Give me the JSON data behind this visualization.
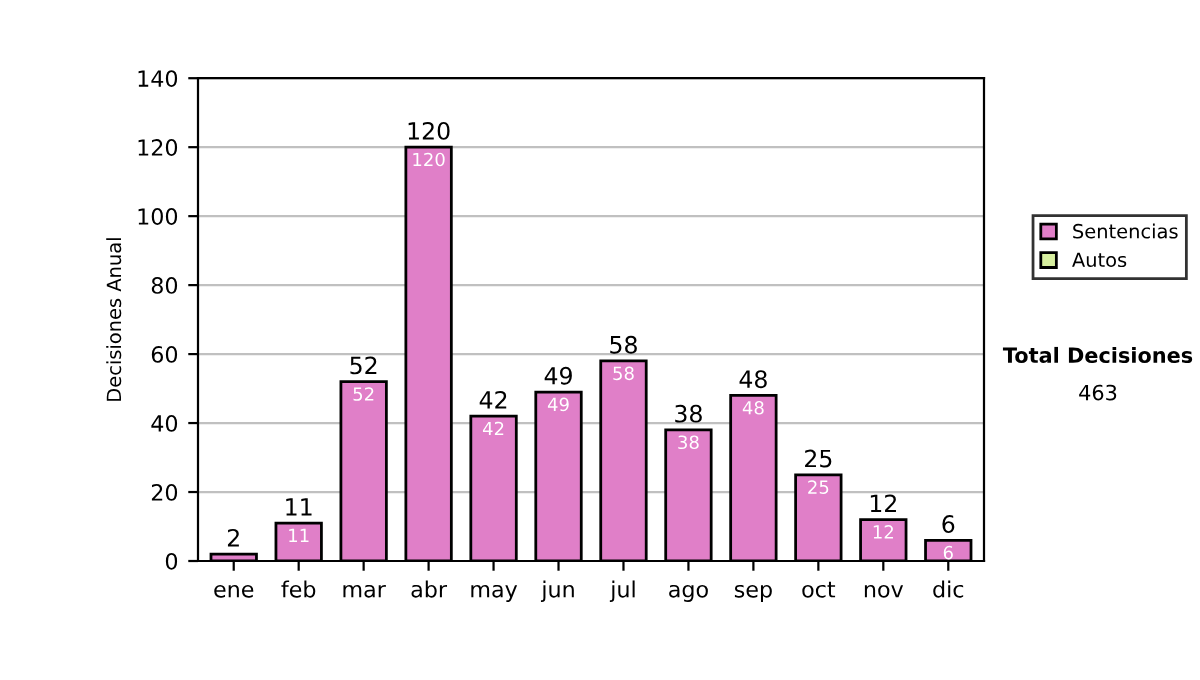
{
  "chart_data": {
    "type": "bar",
    "ylabel": "Decisiones Anual",
    "categories": [
      "ene",
      "feb",
      "mar",
      "abr",
      "may",
      "jun",
      "jul",
      "ago",
      "sep",
      "oct",
      "nov",
      "dic"
    ],
    "series": [
      {
        "name": "Sentencias",
        "color": "#e07fc8",
        "values": [
          2,
          11,
          52,
          120,
          42,
          49,
          58,
          38,
          48,
          25,
          12,
          6
        ],
        "value_labels": [
          null,
          "11",
          "52",
          "120",
          "42",
          "49",
          "58",
          "38",
          "48",
          "25",
          "12",
          "6"
        ]
      },
      {
        "name": "Autos",
        "color": "#d8f0a0",
        "values": [
          null,
          null,
          null,
          null,
          null,
          null,
          null,
          null,
          null,
          null,
          null,
          null
        ]
      }
    ],
    "stacked": true,
    "totals": [
      "2",
      "11",
      "52",
      "120",
      "42",
      "49",
      "58",
      "38",
      "48",
      "25",
      "12",
      "6"
    ],
    "ylim": [
      0,
      140
    ],
    "yticks": [
      0,
      20,
      40,
      60,
      80,
      100,
      120,
      140
    ],
    "grid": "y",
    "legend": "right",
    "annotations": [
      "Total Decisiones",
      "463"
    ]
  }
}
